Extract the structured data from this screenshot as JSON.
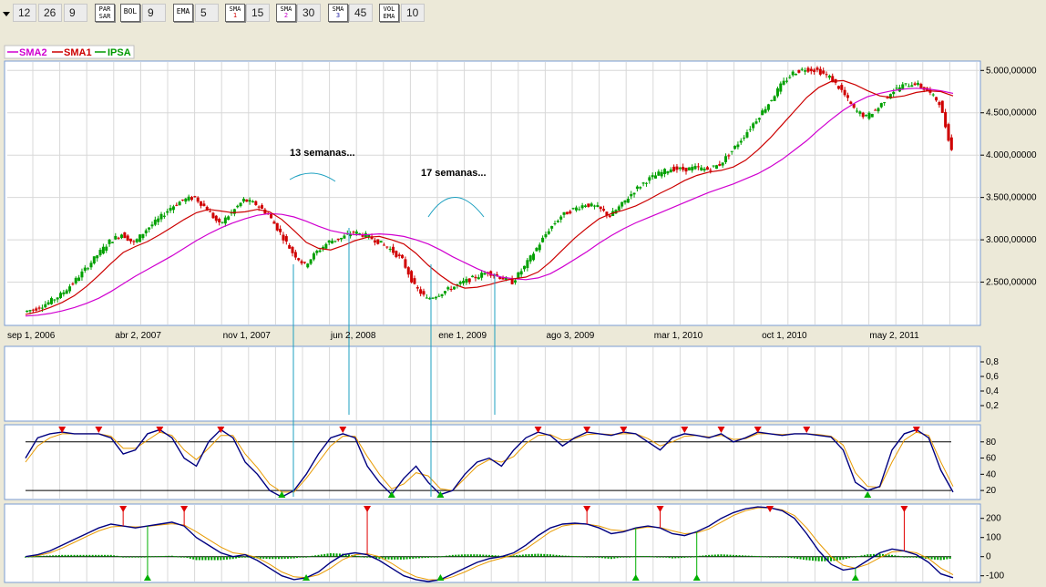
{
  "toolbar": {
    "items": [
      {
        "kind": "field",
        "value": "12",
        "name": "field-12"
      },
      {
        "kind": "field",
        "value": "26",
        "name": "field-26"
      },
      {
        "kind": "field",
        "value": "9",
        "name": "field-9a"
      },
      {
        "kind": "button",
        "label": "PAR SAR",
        "name": "parsar-button"
      },
      {
        "kind": "button",
        "label": "BOL",
        "name": "bol-button"
      },
      {
        "kind": "field",
        "value": "9",
        "name": "field-9b"
      },
      {
        "kind": "button",
        "label": "EMA",
        "name": "ema-button"
      },
      {
        "kind": "field",
        "value": "5",
        "name": "field-5"
      },
      {
        "kind": "button",
        "label": "SMA",
        "sub": "1",
        "subColor": "#d00000",
        "name": "sma1-button"
      },
      {
        "kind": "field",
        "value": "15",
        "name": "field-15"
      },
      {
        "kind": "button",
        "label": "SMA",
        "sub": "2",
        "subColor": "#c800c8",
        "name": "sma2-button"
      },
      {
        "kind": "field",
        "value": "30",
        "name": "field-30"
      },
      {
        "kind": "button",
        "label": "SMA",
        "sub": "3",
        "subColor": "#1a1aa0",
        "name": "sma3-button"
      },
      {
        "kind": "field",
        "value": "45",
        "name": "field-45"
      },
      {
        "kind": "button",
        "label": "VOL EMA",
        "name": "volema-button"
      },
      {
        "kind": "field",
        "value": "10",
        "name": "field-10"
      }
    ]
  },
  "legend": [
    {
      "label": "SMA2",
      "color": "#d000d0"
    },
    {
      "label": "SMA1",
      "color": "#cc0000"
    },
    {
      "label": "IPSA",
      "color": "#009900"
    }
  ],
  "annotations": {
    "a1": "13 semanas...",
    "a2": "17 semanas..."
  },
  "colors": {
    "up": "#00a000",
    "down": "#d00000",
    "sma1": "#cc0000",
    "sma2": "#d000d0",
    "osc": "#000080",
    "signal": "#e89a00",
    "marker_line": "#1da0c0"
  },
  "chart_data": [
    {
      "type": "line",
      "name": "price",
      "xticks": [
        "sep 1, 2006",
        "abr 2, 2007",
        "nov 1, 2007",
        "jun 2, 2008",
        "ene 1, 2009",
        "ago 3, 2009",
        "mar 1, 2010",
        "oct 1, 2010",
        "may 2, 2011"
      ],
      "yticks": [
        "5.000,00000",
        "4.500,00000",
        "4.000,00000",
        "3.500,00000",
        "3.000,00000",
        "2.500,00000"
      ],
      "ylim": [
        2000,
        5100
      ],
      "series": [
        {
          "name": "IPSA",
          "values": [
            2150,
            2190,
            2260,
            2350,
            2490,
            2650,
            2820,
            2980,
            3070,
            2960,
            3120,
            3240,
            3380,
            3470,
            3500,
            3360,
            3180,
            3320,
            3470,
            3420,
            3300,
            3080,
            2850,
            2700,
            2860,
            2980,
            3020,
            3090,
            3050,
            2980,
            2890,
            2760,
            2450,
            2300,
            2360,
            2430,
            2500,
            2560,
            2620,
            2560,
            2500,
            2680,
            2900,
            3120,
            3280,
            3360,
            3420,
            3380,
            3280,
            3420,
            3580,
            3700,
            3780,
            3840,
            3830,
            3850,
            3830,
            3890,
            4050,
            4230,
            4420,
            4610,
            4820,
            4970,
            5020,
            5000,
            4920,
            4760,
            4540,
            4450,
            4560,
            4740,
            4820,
            4850,
            4760,
            4620,
            4060
          ]
        },
        {
          "name": "SMA1",
          "values": [
            2120,
            2150,
            2200,
            2260,
            2340,
            2450,
            2580,
            2720,
            2850,
            2920,
            2980,
            3060,
            3150,
            3240,
            3320,
            3360,
            3340,
            3320,
            3330,
            3360,
            3330,
            3240,
            3110,
            2970,
            2900,
            2880,
            2930,
            2990,
            3030,
            3040,
            3000,
            2950,
            2840,
            2700,
            2580,
            2480,
            2430,
            2440,
            2470,
            2510,
            2540,
            2560,
            2620,
            2740,
            2880,
            3020,
            3140,
            3250,
            3310,
            3350,
            3400,
            3470,
            3550,
            3620,
            3700,
            3760,
            3800,
            3820,
            3860,
            3940,
            4060,
            4200,
            4360,
            4520,
            4680,
            4800,
            4870,
            4880,
            4830,
            4760,
            4700,
            4680,
            4700,
            4740,
            4760,
            4750,
            4700
          ]
        },
        {
          "name": "SMA2",
          "values": [
            2100,
            2110,
            2130,
            2160,
            2200,
            2250,
            2310,
            2390,
            2480,
            2570,
            2650,
            2730,
            2810,
            2900,
            2990,
            3070,
            3140,
            3200,
            3250,
            3290,
            3310,
            3300,
            3270,
            3220,
            3160,
            3110,
            3080,
            3060,
            3060,
            3070,
            3060,
            3040,
            3000,
            2950,
            2880,
            2800,
            2730,
            2660,
            2600,
            2560,
            2540,
            2530,
            2550,
            2600,
            2680,
            2770,
            2860,
            2960,
            3050,
            3130,
            3200,
            3260,
            3320,
            3380,
            3440,
            3500,
            3560,
            3610,
            3660,
            3720,
            3780,
            3860,
            3950,
            4060,
            4170,
            4300,
            4420,
            4530,
            4620,
            4690,
            4730,
            4760,
            4780,
            4790,
            4780,
            4760,
            4730
          ]
        }
      ]
    },
    {
      "type": "line",
      "name": "volume-panel",
      "yticks": [
        "0,8",
        "0,6",
        "0,4",
        "0,2"
      ],
      "ylim": [
        0,
        1
      ]
    },
    {
      "type": "line",
      "name": "stochastic",
      "yticks": [
        "80",
        "60",
        "40",
        "20"
      ],
      "ylim": [
        10,
        100
      ],
      "levels": [
        80,
        20
      ],
      "series": [
        {
          "name": "K",
          "values": [
            60,
            85,
            90,
            92,
            90,
            90,
            90,
            85,
            65,
            70,
            90,
            95,
            85,
            60,
            50,
            80,
            95,
            85,
            55,
            40,
            20,
            12,
            20,
            40,
            65,
            85,
            90,
            85,
            50,
            30,
            15,
            35,
            50,
            30,
            15,
            20,
            40,
            55,
            60,
            50,
            70,
            85,
            92,
            88,
            75,
            85,
            92,
            90,
            88,
            92,
            90,
            80,
            70,
            85,
            90,
            88,
            85,
            90,
            80,
            85,
            92,
            90,
            88,
            90,
            90,
            88,
            86,
            70,
            30,
            20,
            25,
            70,
            90,
            95,
            85,
            45,
            18
          ]
        },
        {
          "name": "D",
          "values": [
            55,
            75,
            85,
            90,
            90,
            90,
            90,
            87,
            72,
            72,
            82,
            92,
            88,
            70,
            58,
            72,
            88,
            88,
            65,
            48,
            28,
            18,
            18,
            35,
            55,
            75,
            87,
            87,
            62,
            40,
            22,
            28,
            42,
            38,
            22,
            20,
            35,
            50,
            58,
            55,
            62,
            78,
            88,
            89,
            82,
            84,
            89,
            90,
            89,
            90,
            90,
            84,
            75,
            80,
            87,
            88,
            86,
            88,
            83,
            84,
            90,
            90,
            89,
            90,
            90,
            89,
            87,
            76,
            42,
            25,
            24,
            55,
            82,
            92,
            88,
            55,
            25
          ]
        }
      ]
    },
    {
      "type": "bar",
      "name": "macd",
      "yticks": [
        "200",
        "100",
        "0",
        "-100"
      ],
      "ylim": [
        -130,
        270
      ],
      "series": [
        {
          "name": "MACD",
          "values": [
            0,
            10,
            30,
            60,
            90,
            120,
            150,
            170,
            160,
            150,
            160,
            170,
            180,
            160,
            100,
            60,
            20,
            0,
            10,
            -20,
            -60,
            -100,
            -120,
            -110,
            -80,
            -30,
            10,
            20,
            10,
            -20,
            -60,
            -100,
            -120,
            -130,
            -120,
            -90,
            -60,
            -30,
            -10,
            0,
            20,
            60,
            110,
            150,
            170,
            175,
            170,
            150,
            120,
            130,
            150,
            160,
            150,
            120,
            110,
            130,
            160,
            200,
            230,
            250,
            260,
            255,
            240,
            200,
            120,
            30,
            -40,
            -70,
            -60,
            -20,
            20,
            40,
            30,
            10,
            -30,
            -90,
            -110
          ]
        },
        {
          "name": "Signal",
          "values": [
            0,
            5,
            20,
            45,
            75,
            105,
            135,
            155,
            160,
            155,
            158,
            165,
            172,
            165,
            130,
            90,
            50,
            20,
            12,
            -5,
            -40,
            -80,
            -105,
            -110,
            -95,
            -60,
            -15,
            10,
            15,
            0,
            -35,
            -75,
            -105,
            -120,
            -122,
            -105,
            -80,
            -50,
            -25,
            -8,
            10,
            40,
            85,
            130,
            160,
            170,
            170,
            160,
            140,
            135,
            145,
            155,
            152,
            135,
            120,
            125,
            145,
            180,
            215,
            240,
            255,
            255,
            245,
            215,
            150,
            70,
            0,
            -45,
            -60,
            -40,
            -5,
            25,
            30,
            20,
            -10,
            -60,
            -95
          ]
        }
      ]
    }
  ]
}
